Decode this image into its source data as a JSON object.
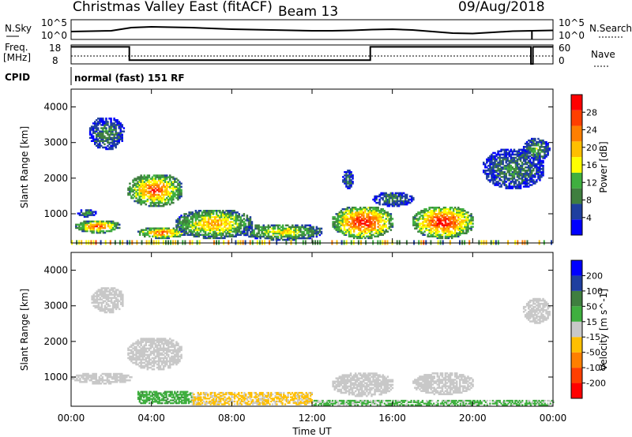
{
  "header": {
    "title": "Christmas Valley East (fitACF)",
    "beam": "Beam 13",
    "date": "09/Aug/2018"
  },
  "top_panels": {
    "nsky_label": "N.Sky",
    "nsky_ticks": [
      "10^5",
      "10^0"
    ],
    "nsearch_label": "N.Search",
    "nsearch_ticks": [
      "10^5",
      "10^0"
    ],
    "freq_label_1": "Freq.",
    "freq_label_2": "[MHz]",
    "freq_ticks": [
      "18",
      "8"
    ],
    "nave_label": "Nave",
    "nave_ticks": [
      "60",
      "0"
    ],
    "cpid_label": "CPID",
    "cpid_text": "normal (fast) 151 RF"
  },
  "colors": {
    "power_scale": [
      "#0000ff",
      "#1f3f9f",
      "#3f7f3f",
      "#3faf3f",
      "#ffff00",
      "#ffbf00",
      "#ff7f00",
      "#ff3f00",
      "#ff0000"
    ],
    "velocity_scale": [
      "#0000ff",
      "#1f3f9f",
      "#3f7f3f",
      "#3faf3f",
      "#c8c8c8",
      "#ffbf00",
      "#ff7f00",
      "#ff3f00",
      "#ff0000"
    ],
    "ground_scatter": "#c8c8c8"
  },
  "chart_data": [
    {
      "type": "line",
      "panel": "noise",
      "x": [
        0,
        1,
        2,
        3,
        4,
        5,
        6,
        7,
        8,
        9,
        10,
        11,
        12,
        13,
        14,
        15,
        16,
        17,
        18,
        19,
        20,
        21,
        22,
        23,
        24
      ],
      "series": [
        {
          "name": "N.Sky",
          "values": [
            2.0,
            2.1,
            2.2,
            3.0,
            3.2,
            3.1,
            3.0,
            2.8,
            2.6,
            2.5,
            2.4,
            2.3,
            2.2,
            2.2,
            2.3,
            2.5,
            2.6,
            2.4,
            2.0,
            1.6,
            1.5,
            1.8,
            2.1,
            2.2,
            2.3
          ]
        }
      ],
      "ylim": [
        0,
        5
      ]
    },
    {
      "type": "line",
      "panel": "frequency",
      "x": [
        0,
        2.9,
        2.9,
        14.9,
        14.9,
        22.9,
        22.9,
        23.0,
        23.0,
        24
      ],
      "series": [
        {
          "name": "Freq.",
          "values": [
            17,
            17,
            10,
            10,
            17,
            17,
            8,
            8,
            17,
            17
          ]
        }
      ],
      "ylim": [
        8,
        18
      ]
    },
    {
      "type": "heatmap",
      "title": "",
      "xlabel": "Time UT",
      "ylabel": "Slant Range [km]",
      "x_ticks": [
        "00:00",
        "04:00",
        "08:00",
        "12:00",
        "16:00",
        "20:00",
        "00:00"
      ],
      "xlim": [
        0,
        24
      ],
      "y_ticks": [
        "1000",
        "2000",
        "3000",
        "4000"
      ],
      "ylim": [
        180,
        4500
      ],
      "colorbar_label": "Power [dB]",
      "colorbar_ticks": [
        "4",
        "8",
        "12",
        "16",
        "20",
        "24",
        "28"
      ],
      "clim": [
        0,
        30
      ],
      "regions": [
        {
          "t0": 0.2,
          "t1": 2.4,
          "r0": 450,
          "r1": 800,
          "peak": 26
        },
        {
          "t0": 0.3,
          "t1": 1.2,
          "r0": 900,
          "r1": 1100,
          "peak": 12
        },
        {
          "t0": 0.9,
          "t1": 2.6,
          "r0": 2800,
          "r1": 3700,
          "peak": 10
        },
        {
          "t0": 2.8,
          "t1": 5.5,
          "r0": 1200,
          "r1": 2100,
          "peak": 26
        },
        {
          "t0": 3.3,
          "t1": 5.7,
          "r0": 300,
          "r1": 600,
          "peak": 26
        },
        {
          "t0": 5.2,
          "t1": 9.0,
          "r0": 300,
          "r1": 1100,
          "peak": 22
        },
        {
          "t0": 8.5,
          "t1": 12.5,
          "r0": 250,
          "r1": 700,
          "peak": 18
        },
        {
          "t0": 13.0,
          "t1": 16.0,
          "r0": 300,
          "r1": 1200,
          "peak": 30
        },
        {
          "t0": 13.5,
          "t1": 14.0,
          "r0": 1700,
          "r1": 2200,
          "peak": 10
        },
        {
          "t0": 15.0,
          "t1": 17.0,
          "r0": 1200,
          "r1": 1600,
          "peak": 10
        },
        {
          "t0": 17.0,
          "t1": 20.0,
          "r0": 300,
          "r1": 1200,
          "peak": 30
        },
        {
          "t0": 20.5,
          "t1": 23.5,
          "r0": 1700,
          "r1": 2800,
          "peak": 10
        },
        {
          "t0": 22.5,
          "t1": 23.8,
          "r0": 2500,
          "r1": 3100,
          "peak": 12
        }
      ]
    },
    {
      "type": "heatmap",
      "title": "",
      "xlabel": "Time UT",
      "ylabel": "Slant Range [km]",
      "x_ticks": [
        "00:00",
        "04:00",
        "08:00",
        "12:00",
        "16:00",
        "20:00",
        "00:00"
      ],
      "xlim": [
        0,
        24
      ],
      "y_ticks": [
        "1000",
        "2000",
        "3000",
        "4000"
      ],
      "ylim": [
        180,
        4500
      ],
      "colorbar_label": "Velocity [m s^-1]",
      "colorbar_ticks": [
        "200",
        "100",
        "50",
        "15",
        "-15",
        "-50",
        "-100",
        "-200"
      ],
      "clim": [
        -250,
        250
      ],
      "ground_scatter_regions": [
        {
          "t0": 0.0,
          "t1": 3.0,
          "r0": 800,
          "r1": 1100
        },
        {
          "t0": 2.8,
          "t1": 5.5,
          "r0": 1200,
          "r1": 2100
        },
        {
          "t0": 1.0,
          "t1": 2.6,
          "r0": 2800,
          "r1": 3500
        },
        {
          "t0": 13.0,
          "t1": 16.0,
          "r0": 450,
          "r1": 1100
        },
        {
          "t0": 17.0,
          "t1": 20.0,
          "r0": 500,
          "r1": 1100
        },
        {
          "t0": 22.5,
          "t1": 23.8,
          "r0": 2500,
          "r1": 3200
        }
      ],
      "ionospheric_regions": [
        {
          "t0": 3.3,
          "t1": 6.0,
          "r0": 250,
          "r1": 600,
          "v": 60
        },
        {
          "t0": 6.0,
          "t1": 12.0,
          "r0": 220,
          "r1": 550,
          "v": -40
        },
        {
          "t0": 12.0,
          "t1": 24.0,
          "r0": 200,
          "r1": 350,
          "v": 40
        }
      ]
    }
  ]
}
